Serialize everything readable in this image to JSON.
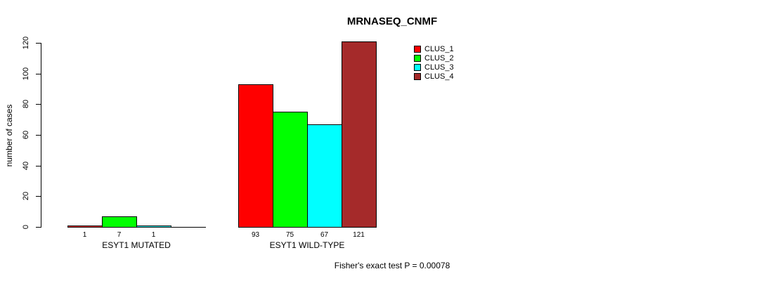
{
  "chart_data": {
    "type": "bar",
    "title": "MRNASEQ_CNMF",
    "ylabel": "number of cases",
    "xlabel": "",
    "categories": [
      "ESYT1 MUTATED",
      "ESYT1 WILD-TYPE"
    ],
    "series": [
      {
        "name": "CLUS_1",
        "color": "#FF0000",
        "values": [
          1,
          93
        ]
      },
      {
        "name": "CLUS_2",
        "color": "#00FF00",
        "values": [
          7,
          75
        ]
      },
      {
        "name": "CLUS_3",
        "color": "#00FFFF",
        "values": [
          1,
          67
        ]
      },
      {
        "name": "CLUS_4",
        "color": "#A52A2A",
        "values": [
          0,
          121
        ]
      }
    ],
    "bar_value_labels": [
      [
        "1",
        "7",
        "1",
        ""
      ],
      [
        "93",
        "75",
        "67",
        "121"
      ]
    ],
    "yticks": [
      0,
      20,
      40,
      60,
      80,
      100,
      120
    ],
    "ylim": [
      0,
      120
    ],
    "grid": false,
    "legend_position": "top-right",
    "legend_entries": [
      "CLUS_1",
      "CLUS_2",
      "CLUS_3",
      "CLUS_4"
    ],
    "annotation": "Fisher's exact test P = 0.00078",
    "bar_outline_color": "#000000",
    "background_color": "#FFFFFF",
    "text_color": "#000000"
  }
}
